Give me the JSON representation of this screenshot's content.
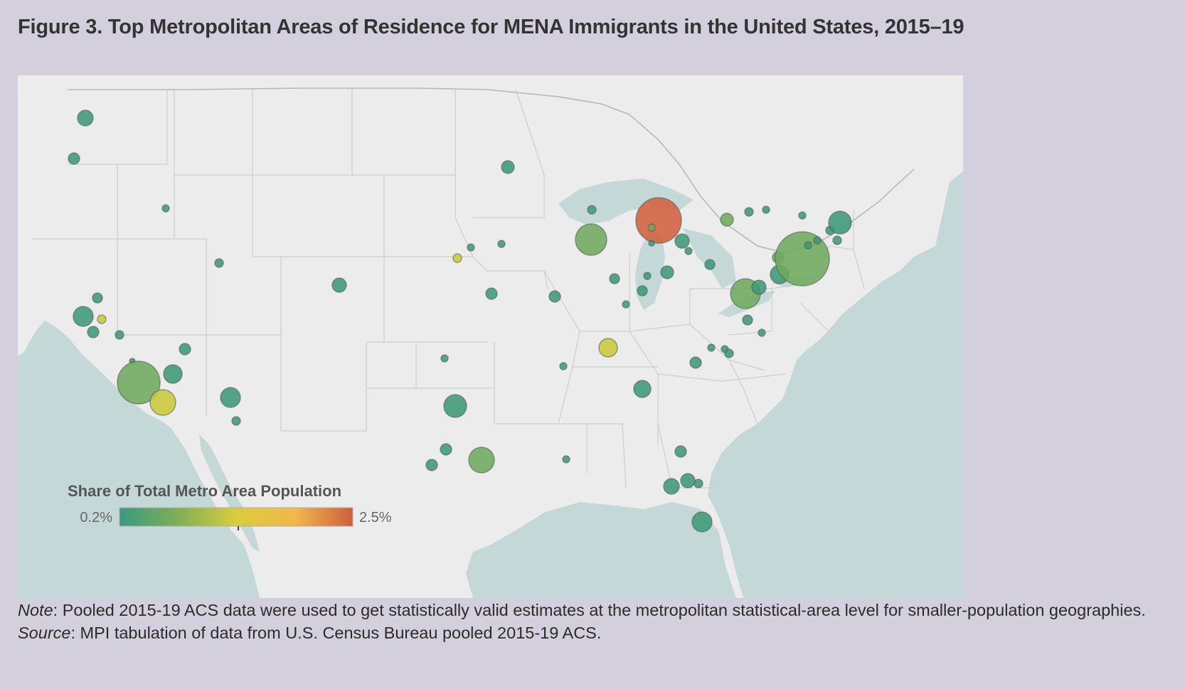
{
  "figure": {
    "title": "Figure 3. Top Metropolitan Areas of Residence for MENA Immigrants in the United States, 2015–19",
    "note_label": "Note",
    "note_text": ": Pooled 2015-19 ACS data were used to get statistically valid estimates at the metropolitan statistical-area level for smaller-population geographies.",
    "source_label": "Source",
    "source_text": ": MPI tabulation of data from U.S. Census Bureau pooled 2015-19 ACS."
  },
  "legend": {
    "title": "Share of Total Metro Area Population",
    "min_label": "0.2%",
    "max_label": "2.5%",
    "color_stops": [
      "#3a9a82",
      "#7fae57",
      "#d8cd3c",
      "#f2b84b",
      "#ce5e3e"
    ]
  },
  "colors": {
    "land": "#ececec",
    "water": "#c3d8d7",
    "state_border": "#c9c9c9",
    "background": "#d3cfdd"
  }
}
